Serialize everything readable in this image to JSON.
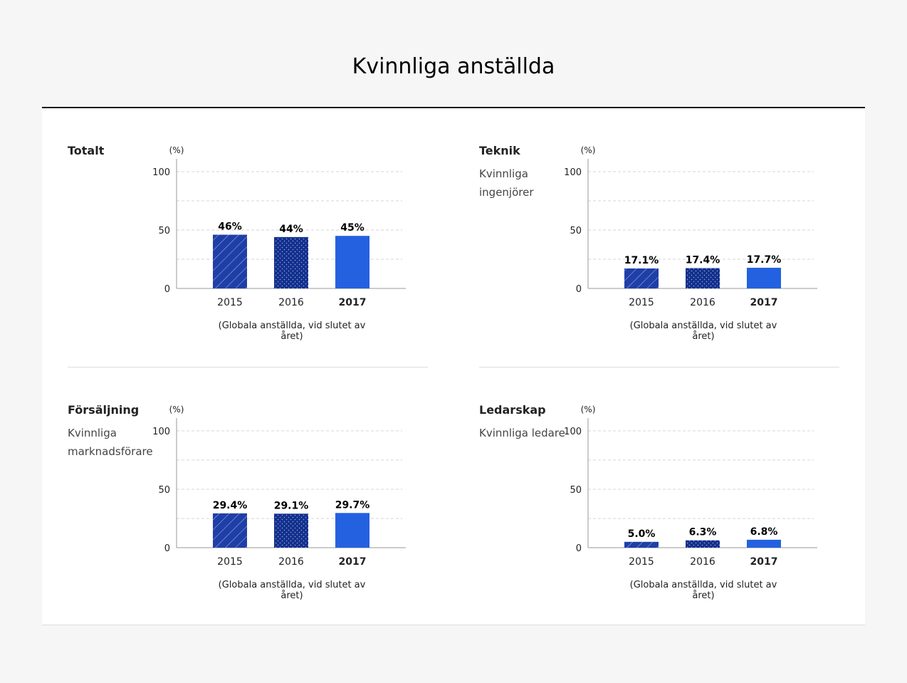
{
  "page": {
    "title": "Kvinnliga anställda"
  },
  "colors": {
    "bar_2015": "#1f3fa8",
    "bar_2016": "#12308e",
    "bar_2017": "#2461e0",
    "grid": "#d6d6d6",
    "axis": "#999999"
  },
  "chart_data": [
    {
      "type": "bar",
      "title": "Totalt",
      "subtitle": "",
      "ylabel": "(%)",
      "ylim": [
        0,
        100
      ],
      "yticks": [
        "0",
        "50",
        "100"
      ],
      "categories": [
        "2015",
        "2016",
        "2017"
      ],
      "values": [
        46,
        44,
        45
      ],
      "value_labels": [
        "46%",
        "44%",
        "45%"
      ],
      "note": "(Globala anställda, vid slutet av året)"
    },
    {
      "type": "bar",
      "title": "Teknik",
      "subtitle": "Kvinnliga ingenjörer",
      "ylabel": "(%)",
      "ylim": [
        0,
        100
      ],
      "yticks": [
        "0",
        "50",
        "100"
      ],
      "categories": [
        "2015",
        "2016",
        "2017"
      ],
      "values": [
        17.1,
        17.4,
        17.7
      ],
      "value_labels": [
        "17.1%",
        "17.4%",
        "17.7%"
      ],
      "note": "(Globala anställda, vid slutet av året)"
    },
    {
      "type": "bar",
      "title": "Försäljning",
      "subtitle": "Kvinnliga marknadsförare",
      "ylabel": "(%)",
      "ylim": [
        0,
        100
      ],
      "yticks": [
        "0",
        "50",
        "100"
      ],
      "categories": [
        "2015",
        "2016",
        "2017"
      ],
      "values": [
        29.4,
        29.1,
        29.7
      ],
      "value_labels": [
        "29.4%",
        "29.1%",
        "29.7%"
      ],
      "note": "(Globala anställda, vid slutet av året)"
    },
    {
      "type": "bar",
      "title": "Ledarskap",
      "subtitle": "Kvinnliga ledare",
      "ylabel": "(%)",
      "ylim": [
        0,
        100
      ],
      "yticks": [
        "0",
        "50",
        "100"
      ],
      "categories": [
        "2015",
        "2016",
        "2017"
      ],
      "values": [
        5.0,
        6.3,
        6.8
      ],
      "value_labels": [
        "5.0%",
        "6.3%",
        "6.8%"
      ],
      "note": "(Globala anställda, vid slutet av året)"
    }
  ]
}
